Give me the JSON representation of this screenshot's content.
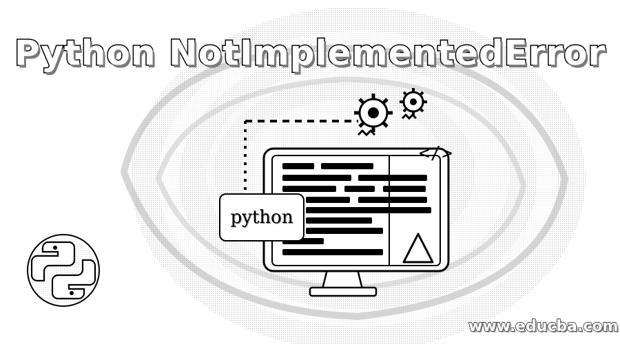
{
  "banner": {
    "title": "Python NotImplementedError",
    "language_badge": "python",
    "code_symbol": "</>",
    "watermark": "www.educba.com"
  },
  "icons": {
    "logo": "python-logo-icon",
    "gears": "gear-icon",
    "warning": "warning-triangle-icon",
    "monitor": "monitor-icon"
  },
  "colors": {
    "background": "#ffffff",
    "ink": "#000000",
    "pattern": "#9a9a9a"
  }
}
